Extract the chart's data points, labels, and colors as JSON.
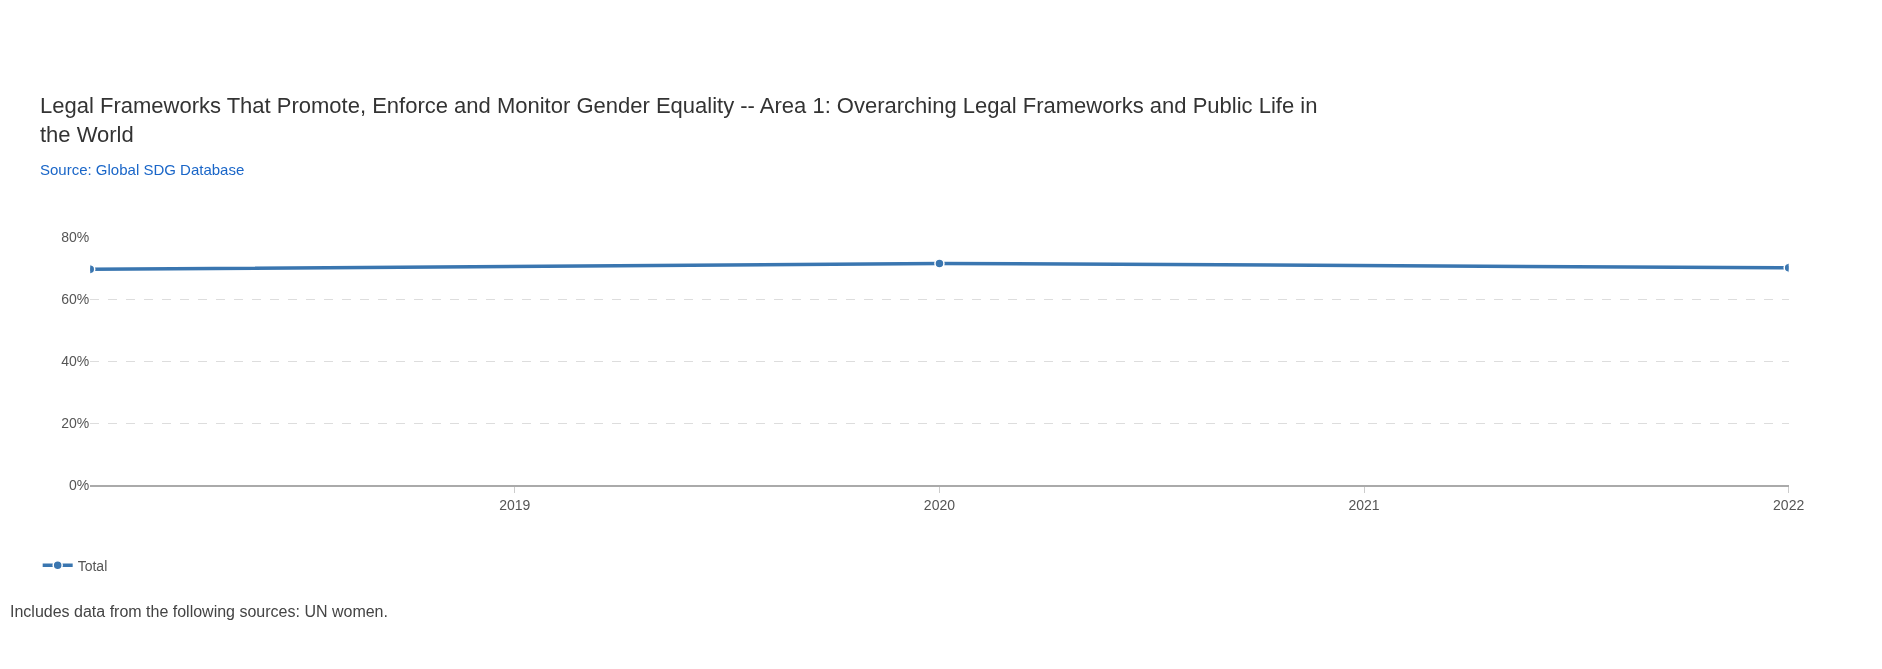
{
  "chart_data": {
    "type": "line",
    "title": "Legal Frameworks That Promote, Enforce and Monitor Gender Equality -- Area 1: Overarching Legal Frameworks and Public Life in the World",
    "subtitle": "Source: Global SDG Database",
    "annotations": [
      "Includes data from the following sources: UN women."
    ],
    "x": [
      2018,
      2020,
      2022
    ],
    "series": [
      {
        "name": "Total",
        "color": "#3a76b0",
        "values": [
          69.7,
          71.6,
          70.2
        ]
      }
    ],
    "xlim": [
      2018,
      2022
    ],
    "xticks": [
      2019,
      2020,
      2021,
      2022
    ],
    "ylim": [
      0,
      80
    ],
    "yticks": [
      {
        "value": 0,
        "label": "0%"
      },
      {
        "value": 20,
        "label": "20%"
      },
      {
        "value": 40,
        "label": "40%"
      },
      {
        "value": 60,
        "label": "60%"
      },
      {
        "value": 80,
        "label": "80%"
      }
    ],
    "grid": "y",
    "legend": "bottom left",
    "marker": "circle",
    "line_style": "solid"
  }
}
